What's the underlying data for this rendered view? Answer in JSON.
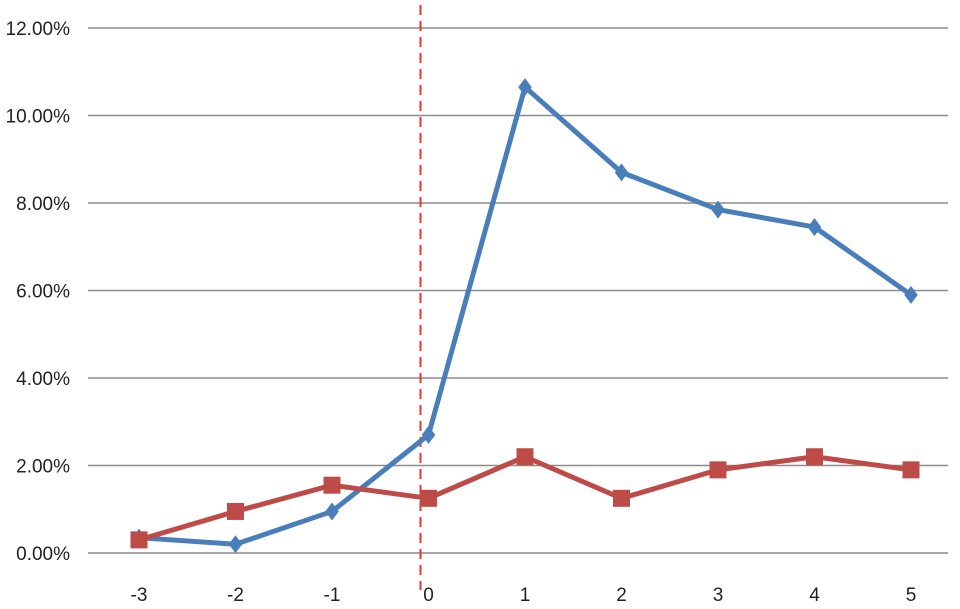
{
  "chart_data": {
    "type": "line",
    "title": "",
    "xlabel": "",
    "ylabel": "",
    "categories": [
      "-3",
      "-2",
      "-1",
      "0",
      "1",
      "2",
      "3",
      "4",
      "5"
    ],
    "y_ticks": [
      "0.00%",
      "2.00%",
      "4.00%",
      "6.00%",
      "8.00%",
      "10.00%",
      "12.00%"
    ],
    "ylim": [
      0,
      12
    ],
    "y_unit": "percent",
    "grid": "horizontal",
    "legend": "none",
    "vertical_reference_line": {
      "x": "0",
      "style": "dashed",
      "color": "#ee3333"
    },
    "series": [
      {
        "marker": "diamond",
        "color": "#4a7ebb",
        "values": [
          0.35,
          0.2,
          0.95,
          2.7,
          10.65,
          8.7,
          7.85,
          7.45,
          5.9
        ]
      },
      {
        "marker": "square",
        "color": "#be4b48",
        "values": [
          0.3,
          0.95,
          1.55,
          1.25,
          2.2,
          1.25,
          1.9,
          2.2,
          1.9
        ]
      }
    ]
  }
}
